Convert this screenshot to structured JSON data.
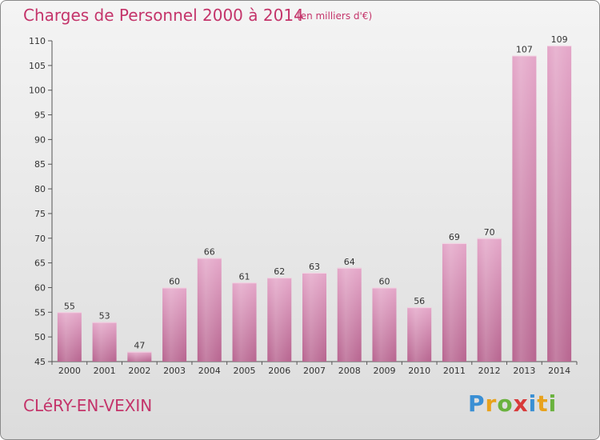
{
  "header": {
    "title": "Charges de Personnel 2000 à 2014",
    "subtitle": "(en milliers d'€)"
  },
  "footer": {
    "commune": "CLéRY-EN-VEXIN",
    "brand_letters": [
      "P",
      "r",
      "o",
      "x",
      "i",
      "t",
      "i"
    ],
    "brand_colors": [
      "#3a8fd4",
      "#e8a21c",
      "#6ab23e",
      "#d83a3a",
      "#3a8fd4",
      "#e8a21c",
      "#6ab23e"
    ]
  },
  "chart_data": {
    "type": "bar",
    "title": "Charges de Personnel 2000 à 2014",
    "subtitle": "(en milliers d'€)",
    "categories": [
      "2000",
      "2001",
      "2002",
      "2003",
      "2004",
      "2005",
      "2006",
      "2007",
      "2008",
      "2009",
      "2010",
      "2011",
      "2012",
      "2013",
      "2014"
    ],
    "values": [
      55,
      53,
      47,
      60,
      66,
      61,
      62,
      63,
      64,
      60,
      56,
      69,
      70,
      107,
      109
    ],
    "ylim": [
      45,
      110
    ],
    "yticks": [
      45,
      50,
      55,
      60,
      65,
      70,
      75,
      80,
      85,
      90,
      95,
      100,
      105,
      110
    ],
    "grid": false,
    "bar_color": "#d98ab4"
  }
}
